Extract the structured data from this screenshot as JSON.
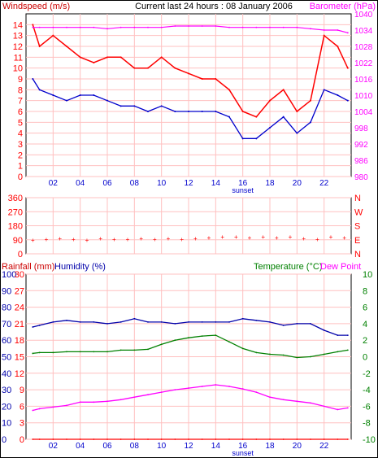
{
  "header": {
    "left_label": "Windspeed (m/s)",
    "center_label": "Current last 24 hours : 08 January 2006",
    "right_label": "Barometer (hPa)"
  },
  "bottom_header": {
    "rainfall_label": "Rainfall (mm)",
    "humidity_label": "Humidity (%)",
    "temperature_label": "Temperature (°C)",
    "dewpoint_label": "Dew Point"
  },
  "x_axis": {
    "ticks": [
      "02",
      "04",
      "06",
      "08",
      "10",
      "12",
      "14",
      "16",
      "18",
      "20",
      "22"
    ],
    "sunset_label": "sunset"
  },
  "colors": {
    "wind_gust": "#ff0000",
    "wind_avg": "#0000cc",
    "barometer": "#ff00ff",
    "left_axis_text": "#0000cc",
    "gridline": "#ffc0c0",
    "humidity": "#0000aa",
    "temperature": "#008000",
    "dewpoint": "#ff00ff",
    "rainfall": "#ff0000",
    "wind_dir": "#ff0000"
  },
  "chart_data": [
    {
      "type": "line",
      "x": [
        "00:30",
        "01:00",
        "02:00",
        "03:00",
        "04:00",
        "05:00",
        "06:00",
        "07:00",
        "08:00",
        "09:00",
        "10:00",
        "11:00",
        "12:00",
        "13:00",
        "14:00",
        "15:00",
        "16:00",
        "17:00",
        "18:00",
        "19:00",
        "20:00",
        "21:00",
        "22:00",
        "23:00",
        "23:45"
      ],
      "series": [
        {
          "name": "Wind Gust",
          "axis": "left",
          "values": [
            14,
            12,
            13,
            12,
            11,
            10.5,
            11,
            11,
            10,
            10,
            11,
            10,
            9.5,
            9,
            9,
            8,
            6,
            5.5,
            7,
            8,
            6,
            7,
            13,
            12,
            10
          ]
        },
        {
          "name": "Wind Speed",
          "axis": "left",
          "values": [
            9,
            8,
            7.5,
            7,
            7.5,
            7.5,
            7,
            6.5,
            6.5,
            6,
            6.5,
            6,
            6,
            6,
            6,
            5.5,
            3.5,
            3.5,
            4.5,
            5.5,
            4,
            5,
            8,
            7.5,
            7
          ]
        },
        {
          "name": "Barometer",
          "axis": "right",
          "values": [
            1035,
            1035,
            1035,
            1035,
            1035,
            1035,
            1034.5,
            1035,
            1035,
            1035,
            1035,
            1035.5,
            1035.5,
            1035.5,
            1035.5,
            1035,
            1035,
            1035,
            1035,
            1035,
            1035,
            1034.5,
            1034,
            1034,
            1033
          ]
        }
      ],
      "left_axis": {
        "ticks": [
          "0",
          "1",
          "2",
          "3",
          "4",
          "5",
          "6",
          "7",
          "8",
          "9",
          "10",
          "11",
          "12",
          "13",
          "14"
        ],
        "label": "Windspeed (m/s)",
        "ylim": [
          0,
          15
        ]
      },
      "right_axis": {
        "ticks": [
          "980",
          "986",
          "992",
          "998",
          "1004",
          "1010",
          "1016",
          "1022",
          "1028",
          "1034",
          "1040"
        ],
        "label": "Barometer (hPa)",
        "ylim": [
          980,
          1040
        ]
      },
      "grid": true
    },
    {
      "type": "scatter",
      "x": [
        "00:30",
        "01:30",
        "02:30",
        "03:30",
        "04:30",
        "05:30",
        "06:30",
        "07:30",
        "08:30",
        "09:30",
        "10:30",
        "11:30",
        "12:30",
        "13:30",
        "14:30",
        "15:30",
        "16:30",
        "17:30",
        "18:30",
        "19:30",
        "20:30",
        "21:30",
        "22:30",
        "23:30"
      ],
      "series": [
        {
          "name": "Wind Direction",
          "values": [
            90,
            95,
            100,
            95,
            90,
            100,
            95,
            95,
            100,
            95,
            100,
            95,
            100,
            105,
            110,
            110,
            105,
            110,
            105,
            110,
            100,
            95,
            110,
            105
          ]
        }
      ],
      "left_axis": {
        "ticks": [
          "0",
          "90",
          "180",
          "270",
          "360"
        ],
        "ylim": [
          0,
          360
        ]
      },
      "right_axis": {
        "ticks": [
          "N",
          "E",
          "S",
          "W",
          "N"
        ]
      },
      "grid": true
    },
    {
      "type": "line",
      "x": [
        "00:30",
        "01:00",
        "02:00",
        "03:00",
        "04:00",
        "05:00",
        "06:00",
        "07:00",
        "08:00",
        "09:00",
        "10:00",
        "11:00",
        "12:00",
        "13:00",
        "14:00",
        "15:00",
        "16:00",
        "17:00",
        "18:00",
        "19:00",
        "20:00",
        "21:00",
        "22:00",
        "23:00",
        "23:45"
      ],
      "series": [
        {
          "name": "Humidity",
          "axis": "humidity",
          "values": [
            68,
            69,
            71,
            72,
            71,
            71,
            70,
            71,
            73,
            71,
            71,
            70,
            71,
            71,
            71,
            71,
            73,
            72,
            71,
            69,
            70,
            70,
            66,
            63,
            63
          ]
        },
        {
          "name": "Temperature",
          "axis": "temp",
          "values": [
            0.4,
            0.5,
            0.5,
            0.6,
            0.6,
            0.6,
            0.6,
            0.8,
            0.8,
            0.9,
            1.5,
            2,
            2.3,
            2.5,
            2.6,
            1.8,
            1,
            0.5,
            0.3,
            0.2,
            -0.1,
            0,
            0.3,
            0.6,
            0.8
          ]
        },
        {
          "name": "Dew Point",
          "axis": "temp",
          "values": [
            -6.5,
            -6.3,
            -6.1,
            -5.9,
            -5.5,
            -5.5,
            -5.4,
            -5.2,
            -4.9,
            -4.6,
            -4.3,
            -4,
            -3.8,
            -3.6,
            -3.4,
            -3.6,
            -3.9,
            -4.3,
            -4.9,
            -5.2,
            -5.4,
            -5.6,
            -6,
            -6.4,
            -6.2
          ]
        },
        {
          "name": "Rainfall",
          "axis": "rain",
          "values": [
            0,
            0,
            0,
            0,
            0,
            0,
            0,
            0,
            0,
            0,
            0,
            0,
            0,
            0,
            0,
            0,
            0,
            0,
            0,
            0,
            0,
            0,
            0,
            0,
            0
          ]
        }
      ],
      "rain_axis": {
        "ticks": [
          "0",
          "3",
          "6",
          "9",
          "12",
          "15",
          "18",
          "21",
          "24",
          "27",
          "30"
        ],
        "label": "Rainfall (mm)",
        "ylim": [
          0,
          30
        ]
      },
      "humidity_axis": {
        "ticks": [
          "0",
          "10",
          "20",
          "30",
          "40",
          "50",
          "60",
          "70",
          "80",
          "90",
          "100"
        ],
        "label": "Humidity (%)",
        "ylim": [
          0,
          100
        ]
      },
      "temp_axis": {
        "ticks": [
          "-10",
          "-8",
          "-6",
          "-4",
          "-2",
          "0",
          "2",
          "4",
          "6",
          "8",
          "10"
        ],
        "label": "Temperature (°C)",
        "ylim": [
          -10,
          10
        ]
      },
      "grid": true
    }
  ]
}
